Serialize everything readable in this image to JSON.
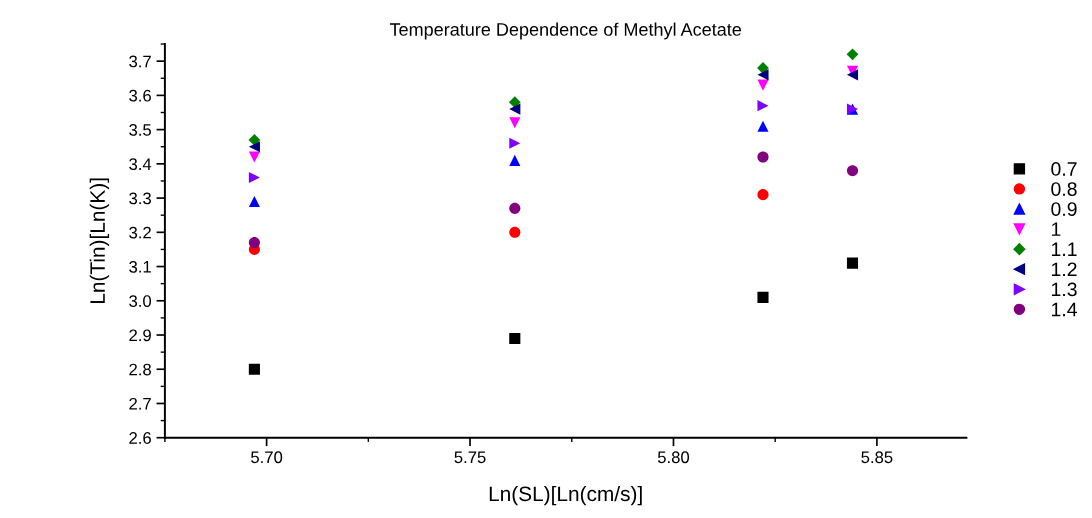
{
  "chart_data": {
    "type": "scatter",
    "title": "Temperature Dependence of Methyl Acetate",
    "xlabel": "Ln(SL)[Ln(cm/s)]",
    "ylabel": "Ln(Tin)[Ln(K)]",
    "x": [
      5.697,
      5.761,
      5.822,
      5.844
    ],
    "series": [
      {
        "name": "0.7",
        "color": "#000000",
        "marker": "square",
        "values": [
          2.8,
          2.89,
          3.01,
          3.11
        ]
      },
      {
        "name": "0.8",
        "color": "#ff0000",
        "marker": "circle",
        "values": [
          3.15,
          3.2,
          3.31,
          null
        ]
      },
      {
        "name": "0.9",
        "color": "#0000ff",
        "marker": "triangle",
        "values": [
          3.29,
          3.41,
          3.51,
          3.56
        ]
      },
      {
        "name": "1",
        "color": "#ff00ff",
        "marker": "triangle-down",
        "values": [
          3.42,
          3.52,
          3.63,
          3.67
        ]
      },
      {
        "name": "1.1",
        "color": "#008000",
        "marker": "diamond",
        "values": [
          3.47,
          3.58,
          3.68,
          3.72
        ]
      },
      {
        "name": "1.2",
        "color": "#000080",
        "marker": "triangle-left",
        "values": [
          3.45,
          3.56,
          3.66,
          3.66
        ]
      },
      {
        "name": "1.3",
        "color": "#8000ff",
        "marker": "triangle-right",
        "values": [
          3.36,
          3.46,
          3.57,
          3.56
        ]
      },
      {
        "name": "1.4",
        "color": "#800080",
        "marker": "circle",
        "values": [
          3.17,
          3.27,
          3.42,
          3.38
        ]
      }
    ],
    "xlim": [
      5.675,
      5.872
    ],
    "xticks": [
      {
        "value": 5.7,
        "label": "5.70"
      },
      {
        "value": 5.75,
        "label": "5.75"
      },
      {
        "value": 5.8,
        "label": "5.80"
      },
      {
        "value": 5.85,
        "label": "5.85"
      }
    ],
    "ylim": [
      2.6,
      3.75
    ],
    "yticks": [
      2.6,
      2.7,
      2.8,
      2.9,
      {
        "value": 3.0,
        "label": "3.0"
      },
      3.1,
      3.2,
      3.3,
      3.4,
      3.5,
      3.6,
      3.7
    ],
    "grid": false,
    "legend": "right"
  }
}
